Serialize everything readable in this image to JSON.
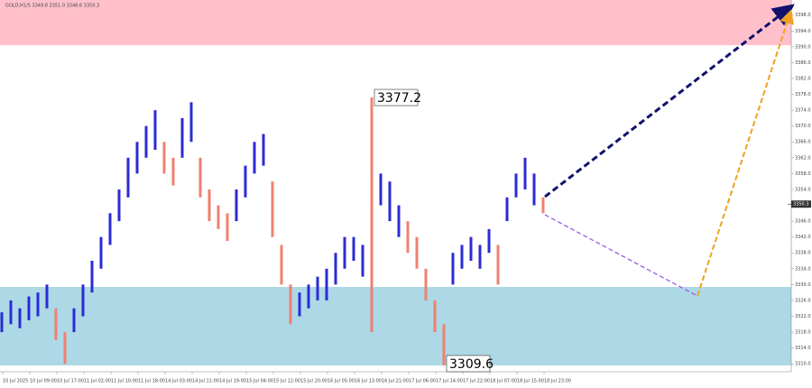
{
  "chart_data": {
    "type": "candlestick",
    "header": "GOLD,H1/S  3349.8 3351.0 3348.6 3350.3",
    "ylim": [
      3308.0,
      3401.8
    ],
    "yticks": [
      {
        "value": 3310,
        "label": "3310.0"
      },
      {
        "value": 3314,
        "label": "3314.0"
      },
      {
        "value": 3318,
        "label": "3318.0"
      },
      {
        "value": 3322,
        "label": "3322.0"
      },
      {
        "value": 3326,
        "label": "3326.0"
      },
      {
        "value": 3330,
        "label": "3330.0"
      },
      {
        "value": 3334,
        "label": "3334.0"
      },
      {
        "value": 3338,
        "label": "3338.0"
      },
      {
        "value": 3342,
        "label": "3342.0"
      },
      {
        "value": 3346,
        "label": "3346.0"
      },
      {
        "value": 3350,
        "label": "3350.0"
      },
      {
        "value": 3354,
        "label": "3354.0"
      },
      {
        "value": 3358,
        "label": "3358.0"
      },
      {
        "value": 3362,
        "label": "3362.0"
      },
      {
        "value": 3366,
        "label": "3366.0"
      },
      {
        "value": 3370,
        "label": "3370.0"
      },
      {
        "value": 3374,
        "label": "3374.0"
      },
      {
        "value": 3378,
        "label": "3378.0"
      },
      {
        "value": 3382,
        "label": "3382.0"
      },
      {
        "value": 3386,
        "label": "3386.0"
      },
      {
        "value": 3390,
        "label": "3390.0"
      },
      {
        "value": 3394,
        "label": "3394.0"
      },
      {
        "value": 3398,
        "label": "3398.0"
      }
    ],
    "time_labels": [
      "10 Jul 2025",
      "10 Jul 09:00",
      "10 Jul 17:00",
      "11 Jul 02:00",
      "11 Jul 10:00",
      "11 Jul 18:00",
      "14 Jul 03:00",
      "14 Jul 11:00",
      "14 Jul 19:00",
      "15 Jul 04:00",
      "15 Jul 12:00",
      "15 Jul 20:00",
      "16 Jul 05:00",
      "16 Jul 13:00",
      "16 Jul 21:00",
      "17 Jul 06:00",
      "17 Jul 14:00",
      "17 Jul 22:00",
      "18 Jul 07:00",
      "18 Jul 15:00",
      "18 Jul 23:00"
    ],
    "zones": [
      {
        "color": "#ffc0cb",
        "range": [
          3390.4,
          3401.8
        ]
      },
      {
        "color": "#add8e6",
        "range": [
          3309.6,
          3329.4
        ]
      }
    ],
    "last_price": {
      "value": 3350.3,
      "label": "3350.3"
    },
    "waves": [
      {
        "color": "#2b2bd6",
        "bars": [
          [
            3318,
            3323
          ],
          [
            3320,
            3326
          ],
          [
            3319,
            3324
          ],
          [
            3321,
            3327
          ],
          [
            3322,
            3328
          ],
          [
            3324,
            3330
          ]
        ]
      },
      {
        "color": "#f08070",
        "bars": [
          [
            3316,
            3324
          ],
          [
            3310,
            3318
          ]
        ]
      },
      {
        "color": "#2b2bd6",
        "bars": [
          [
            3318,
            3324
          ],
          [
            3322,
            3330
          ],
          [
            3328,
            3336
          ],
          [
            3334,
            3342
          ],
          [
            3340,
            3348
          ],
          [
            3346,
            3354
          ],
          [
            3352,
            3362
          ],
          [
            3358,
            3366
          ],
          [
            3362,
            3370
          ],
          [
            3364,
            3374
          ]
        ]
      },
      {
        "color": "#f08070",
        "bars": [
          [
            3358,
            3366
          ],
          [
            3355,
            3362
          ]
        ]
      },
      {
        "color": "#2b2bd6",
        "bars": [
          [
            3362,
            3372
          ],
          [
            3366,
            3376
          ]
        ]
      },
      {
        "color": "#f08070",
        "bars": [
          [
            3352,
            3362
          ],
          [
            3346,
            3354
          ],
          [
            3344,
            3350
          ],
          [
            3341,
            3348
          ]
        ]
      },
      {
        "color": "#2b2bd6",
        "bars": [
          [
            3346,
            3354
          ],
          [
            3352,
            3360
          ],
          [
            3358,
            3366
          ],
          [
            3360,
            3368
          ]
        ]
      },
      {
        "color": "#f08070",
        "bars": [
          [
            3342,
            3356
          ],
          [
            3330,
            3340
          ],
          [
            3320,
            3330
          ]
        ]
      },
      {
        "color": "#2b2bd6",
        "bars": [
          [
            3322,
            3328
          ],
          [
            3324,
            3330
          ],
          [
            3326,
            3332
          ],
          [
            3326,
            3334
          ],
          [
            3330,
            3338
          ],
          [
            3334,
            3342
          ],
          [
            3336,
            3342
          ],
          [
            3332,
            3340
          ]
        ]
      },
      {
        "color": "#f08070",
        "bars": [
          [
            3318,
            3377.2
          ]
        ]
      },
      {
        "color": "#2b2bd6",
        "bars": [
          [
            3350,
            3358
          ],
          [
            3346,
            3356
          ],
          [
            3342,
            3350
          ]
        ]
      },
      {
        "color": "#f08070",
        "bars": [
          [
            3338,
            3346
          ],
          [
            3334,
            3342
          ],
          [
            3326,
            3334
          ],
          [
            3318,
            3326
          ],
          [
            3309.6,
            3320
          ]
        ]
      },
      {
        "color": "#2b2bd6",
        "bars": [
          [
            3330,
            3338
          ],
          [
            3334,
            3340
          ],
          [
            3336,
            3342
          ],
          [
            3334,
            3340
          ],
          [
            3338,
            3344
          ]
        ]
      },
      {
        "color": "#f08070",
        "bars": [
          [
            3330,
            3340
          ]
        ]
      },
      {
        "color": "#2b2bd6",
        "bars": [
          [
            3346,
            3352
          ],
          [
            3352,
            3358
          ],
          [
            3354,
            3362
          ],
          [
            3350,
            3358
          ]
        ]
      },
      {
        "color": "#f08070",
        "bars": [
          [
            3348,
            3352
          ]
        ]
      }
    ]
  }
}
